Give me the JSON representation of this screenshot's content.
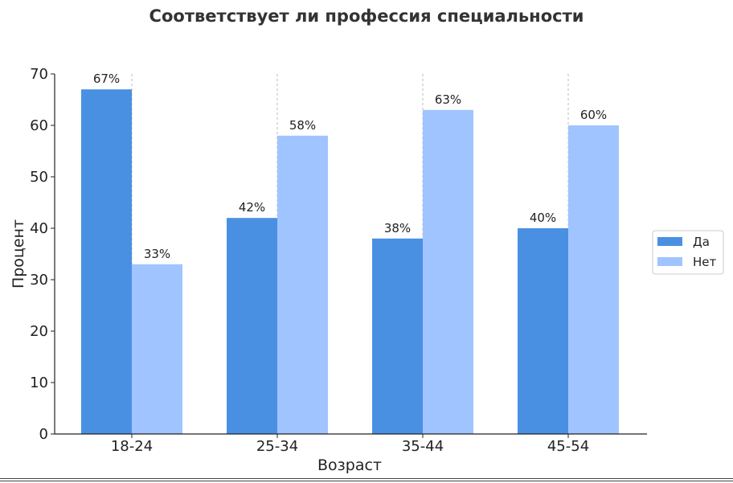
{
  "chart_data": {
    "type": "bar",
    "title": "Соответствует ли профессия специальности",
    "xlabel": "Возраст",
    "ylabel": "Процент",
    "categories": [
      "18-24",
      "25-34",
      "35-44",
      "45-54"
    ],
    "ylim": [
      0,
      70
    ],
    "yticks": [
      "0",
      "10",
      "20",
      "30",
      "40",
      "50",
      "60",
      "70"
    ],
    "series": [
      {
        "name": "Да",
        "values": [
          67,
          42,
          38,
          40
        ],
        "labels": [
          "67%",
          "42%",
          "38%",
          "40%"
        ],
        "color": "#4a90e2"
      },
      {
        "name": "Нет",
        "values": [
          33,
          58,
          63,
          60
        ],
        "labels": [
          "33%",
          "58%",
          "63%",
          "60%"
        ],
        "color": "#a0c4ff"
      }
    ],
    "grid": "vertical dashed at categories",
    "legend": "right"
  }
}
